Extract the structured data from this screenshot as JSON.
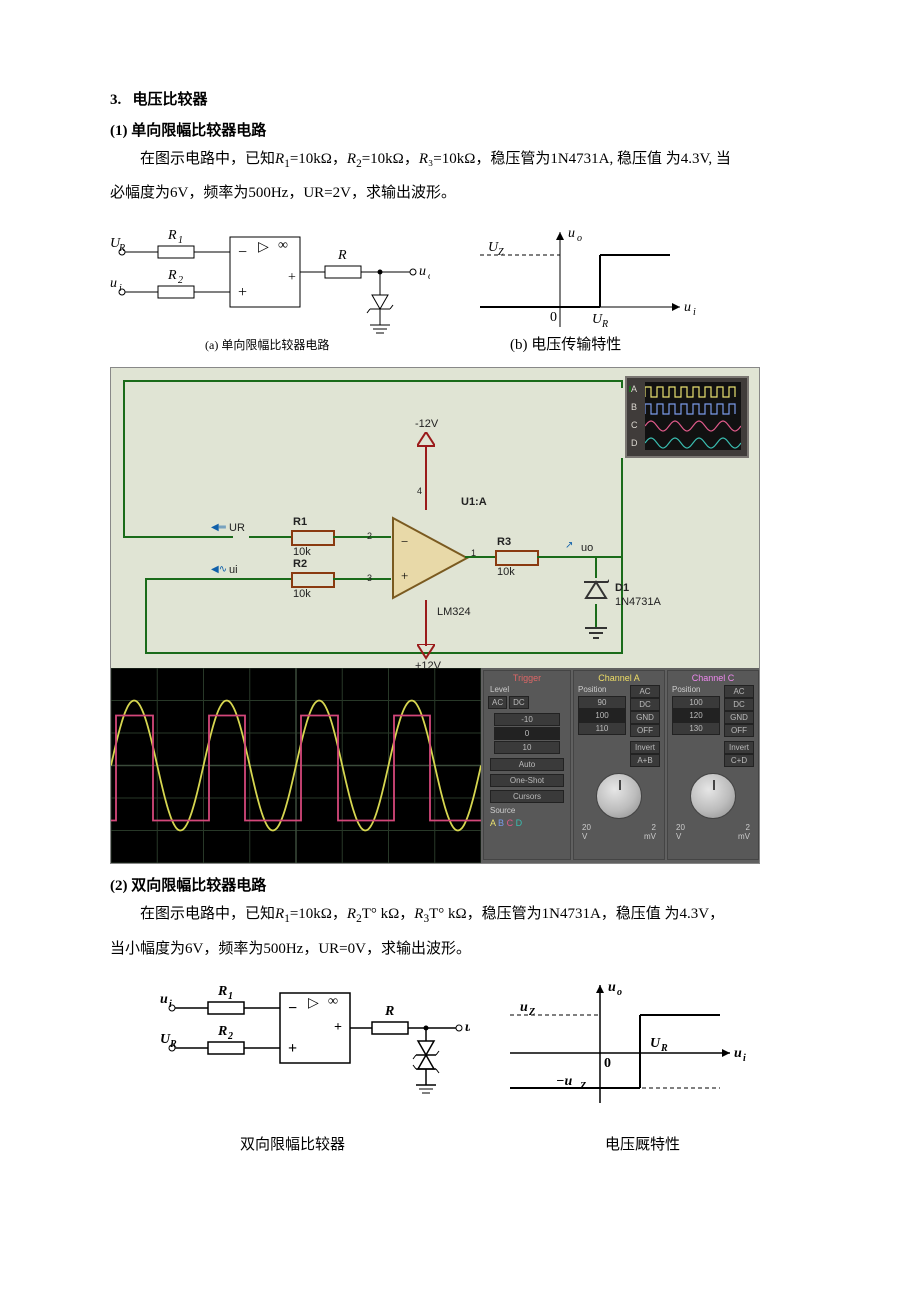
{
  "section": {
    "num": "3.",
    "title": "电压比较器",
    "sub1": {
      "num": "(1)",
      "title": "单向限幅比较器电路"
    },
    "sub2": {
      "num": "(2)",
      "title": "双向限幅比较器电路"
    }
  },
  "para1a": "在图示电路中，已知",
  "para1b": "=10kΩ，",
  "para1c": "=10kΩ，",
  "para1d": "₃=10kΩ，稳压管为1N4731A, 稳压值 为4.3V, 当",
  "para1e": "必幅度为6V，频率为500Hz，UR=2V，求输出波形。",
  "para2a": "在图示电路中，已知",
  "para2b": "=10kΩ，",
  "para2c": "T° kΩ，",
  "para2d": "T° kΩ，稳压管为1N4731A，稳压值 为4.3V，",
  "para2e": "当小幅度为6V，频率为500Hz，UR=0V，求输出波形。",
  "labels": {
    "R1": "R₁",
    "R2": "R₂",
    "R": "R",
    "R3": "R3",
    "UR": "U_R",
    "ui": "u_i",
    "uo": "u_o",
    "Uz": "U_Z",
    "uz": "u_Z",
    "mUz": "−u_Z",
    "capA": "(a) 单向限幅比较器电路",
    "capB": "(b)   电压传输特性",
    "capC": "双向限幅比较器",
    "capD": "电压厩特性",
    "U1A": "U1:A",
    "LM324": "LM324",
    "D1": "D1",
    "D1p": "1N4731A",
    "res10k": "10k",
    "n12": "-12V",
    "p12": "+12V",
    "UR2": "UR",
    "ui2": "ui",
    "uo2": "uo"
  },
  "scope": {
    "chans": [
      "A",
      "B",
      "C",
      "D"
    ],
    "colors": [
      "#e8e070",
      "#7a9ae8",
      "#e05a8a",
      "#3abdb0"
    ],
    "panels": [
      "Trigger",
      "Channel A",
      "Channel C"
    ],
    "trig": {
      "btns": [
        "AC",
        "DC"
      ],
      "lvls": [
        "-10",
        "0",
        "10"
      ],
      "modes": [
        "Auto",
        "One-Shot",
        "Cursors"
      ],
      "src": "Source"
    },
    "chA": {
      "btns": [
        "AC",
        "DC",
        "GND",
        "OFF",
        "Invert",
        "A+B"
      ],
      "pos": [
        "90",
        "100",
        "110"
      ]
    },
    "chC": {
      "btns": [
        "AC",
        "DC",
        "GND",
        "OFF",
        "Invert",
        "C+D"
      ],
      "pos": [
        "100",
        "120",
        "130"
      ]
    },
    "bot": [
      "V",
      "2",
      "20",
      "mV"
    ],
    "waves": {
      "sine_color": "#d6d650",
      "sq_color": "#d4477a",
      "grid": "#283828",
      "amp": 65,
      "periods": 4,
      "sq_hi": -50,
      "sq_lo": 55
    }
  },
  "mini": {
    "colors": [
      "#e8e070",
      "#7a9ae8",
      "#e05a8a",
      "#3abdb0"
    ]
  },
  "colors": {
    "bg": "#e0e4d4",
    "wire": "#1a6b1a",
    "wire_r": "#9a1a1a",
    "res": "#8a3a10"
  }
}
